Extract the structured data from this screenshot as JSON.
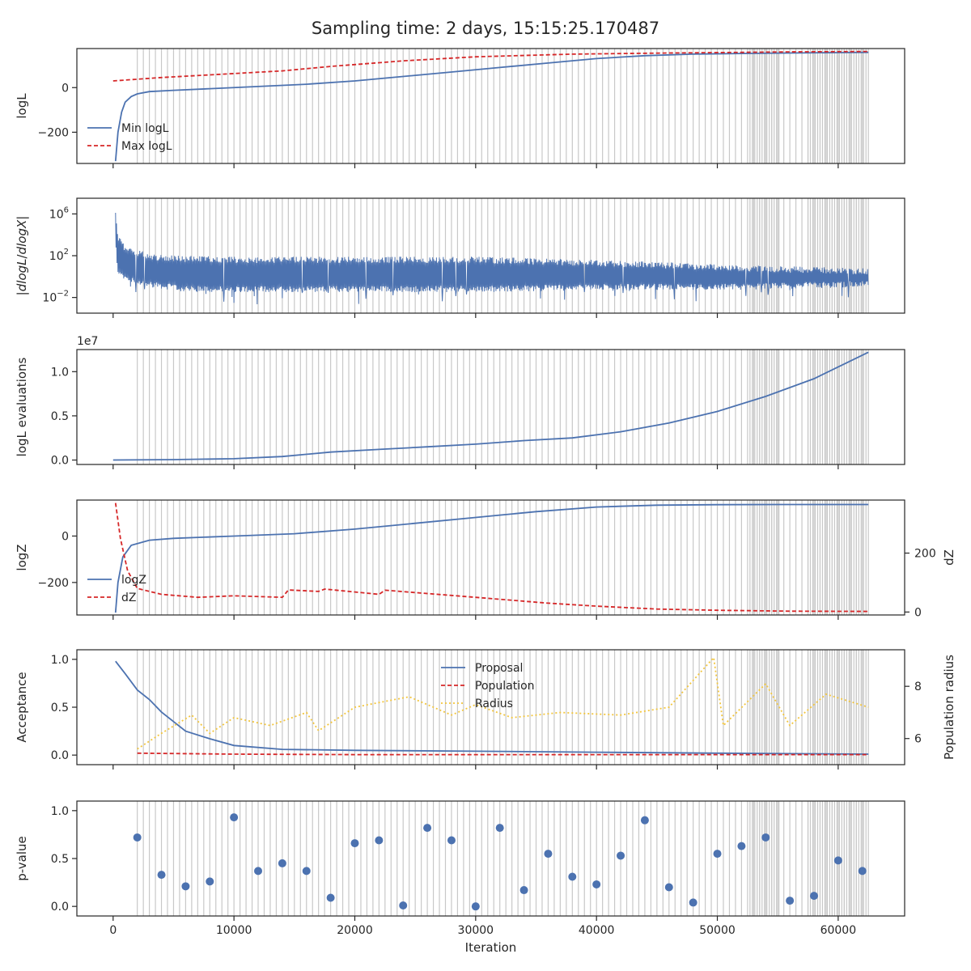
{
  "title": "Sampling time: 2 days, 15:15:25.170487",
  "colors": {
    "blue": "#4c72b0",
    "red": "#d62728",
    "yellow": "#f2c53d",
    "marker_lines": "#c8c8c8",
    "axes": "#262626"
  },
  "chart_data": [
    {
      "type": "line",
      "ylabel": "logL",
      "xlim": [
        -3000,
        65500
      ],
      "ylim": [
        -340,
        175
      ],
      "yticks": [
        0,
        -200
      ],
      "ytick_labels": [
        "0",
        "−200"
      ],
      "legend": {
        "placement": "lower-left",
        "entries": [
          "Min logL",
          "Max logL"
        ]
      },
      "series": [
        {
          "name": "Min logL",
          "style": "solid",
          "color": "blue",
          "x": [
            200,
            400,
            700,
            1000,
            1500,
            2000,
            3000,
            5000,
            8000,
            12000,
            16000,
            20000,
            24000,
            28000,
            32000,
            36000,
            40000,
            44000,
            48000,
            52000,
            56000,
            60000,
            62500
          ],
          "y": [
            -330,
            -200,
            -110,
            -65,
            -40,
            -28,
            -18,
            -12,
            -5,
            5,
            15,
            30,
            50,
            70,
            90,
            110,
            130,
            143,
            150,
            153,
            155,
            157,
            158
          ]
        },
        {
          "name": "Max logL",
          "style": "dashed",
          "color": "red",
          "x": [
            0,
            4000,
            9000,
            14000,
            18000,
            24000,
            30000,
            38000,
            46000,
            52000,
            56000,
            62500
          ],
          "y": [
            30,
            45,
            60,
            75,
            95,
            120,
            138,
            150,
            155,
            158,
            160,
            162
          ]
        }
      ]
    },
    {
      "type": "line",
      "ylabel": "|dlogL/dlogX|",
      "yscale": "log",
      "xlim": [
        -3000,
        65500
      ],
      "ylim": [
        -3.5,
        7.5
      ],
      "yticks": [
        6,
        2,
        -2
      ],
      "ytick_labels": [
        "10^6",
        "10^2",
        "10^-2"
      ],
      "series": [
        {
          "name": "",
          "style": "noisy",
          "color": "blue",
          "x": [
            200,
            400,
            1000,
            3000,
            6000,
            10000,
            20000,
            30000,
            40000,
            50000,
            55000,
            62500
          ],
          "y_upper": [
            6.5,
            4.0,
            3.0,
            2.2,
            2.0,
            1.9,
            1.9,
            1.9,
            1.6,
            1.2,
            1.0,
            0.8
          ],
          "y_lower": [
            3.0,
            0.0,
            -0.5,
            -1.0,
            -1.5,
            -1.5,
            -1.5,
            -1.5,
            -1.3,
            -1.3,
            -1.2,
            -1.0
          ],
          "y_min_spikes": [
            -2.5,
            -2.6,
            -3.0,
            -2.5
          ]
        }
      ]
    },
    {
      "type": "line",
      "ylabel": "logL evaluations",
      "offset_text": "1e7",
      "xlim": [
        -3000,
        65500
      ],
      "ylim": [
        -0.05,
        1.25
      ],
      "yticks": [
        0.0,
        0.5,
        1.0
      ],
      "ytick_labels": [
        "0.0",
        "0.5",
        "1.0"
      ],
      "series": [
        {
          "name": "",
          "style": "solid",
          "color": "blue",
          "x": [
            0,
            5000,
            10000,
            14000,
            18000,
            22000,
            26000,
            30000,
            34000,
            38000,
            42000,
            46000,
            50000,
            54000,
            58000,
            62500
          ],
          "y": [
            0.0,
            0.005,
            0.015,
            0.04,
            0.09,
            0.12,
            0.15,
            0.18,
            0.22,
            0.25,
            0.32,
            0.42,
            0.55,
            0.72,
            0.92,
            1.22
          ]
        }
      ]
    },
    {
      "type": "line",
      "ylabel": "logZ",
      "ylabel_right": "dZ",
      "xlim": [
        -3000,
        65500
      ],
      "ylim": [
        -340,
        155
      ],
      "yticks": [
        0,
        -200
      ],
      "ytick_labels": [
        "0",
        "−200"
      ],
      "ylim_right": [
        -10,
        380
      ],
      "yticks_right": [
        200,
        0
      ],
      "ytick_labels_right": [
        "200",
        "0"
      ],
      "legend": {
        "placement": "lower-left",
        "entries": [
          "logZ",
          "dZ"
        ]
      },
      "series": [
        {
          "name": "logZ",
          "style": "solid",
          "color": "blue",
          "axis": "left",
          "x": [
            200,
            400,
            800,
            1500,
            3000,
            5000,
            10000,
            15000,
            20000,
            25000,
            30000,
            35000,
            40000,
            45000,
            50000,
            55000,
            60000,
            62500
          ],
          "y": [
            -330,
            -200,
            -90,
            -40,
            -18,
            -10,
            0,
            10,
            30,
            55,
            80,
            105,
            125,
            133,
            135,
            136,
            136,
            136
          ]
        },
        {
          "name": "dZ",
          "style": "dashed",
          "color": "red",
          "axis": "right",
          "x": [
            200,
            600,
            1200,
            2000,
            4000,
            7000,
            10000,
            14000,
            14500,
            17000,
            17500,
            22000,
            22500,
            30000,
            36000,
            40000,
            45000,
            50000,
            56000,
            62500
          ],
          "y": [
            370,
            250,
            140,
            80,
            60,
            50,
            55,
            50,
            75,
            70,
            78,
            60,
            74,
            50,
            30,
            20,
            10,
            6,
            3,
            2
          ]
        }
      ]
    },
    {
      "type": "line",
      "ylabel": "Acceptance",
      "ylabel_right": "Population radius",
      "xlim": [
        -3000,
        65500
      ],
      "ylim": [
        -0.1,
        1.1
      ],
      "yticks": [
        1.0,
        0.5,
        0.0
      ],
      "ytick_labels": [
        "1.0",
        "0.5",
        "0.0"
      ],
      "ylim_right": [
        5.0,
        9.4
      ],
      "yticks_right": [
        8,
        6
      ],
      "ytick_labels_right": [
        "8",
        "6"
      ],
      "legend": {
        "placement": "upper-center",
        "entries": [
          "Proposal",
          "Population",
          "Radius"
        ]
      },
      "series": [
        {
          "name": "Proposal",
          "style": "solid",
          "color": "blue",
          "axis": "left",
          "x": [
            200,
            1000,
            2000,
            3000,
            4000,
            5000,
            6000,
            8000,
            10000,
            14000,
            20000,
            30000,
            40000,
            50000,
            62500
          ],
          "y": [
            0.98,
            0.85,
            0.68,
            0.58,
            0.45,
            0.35,
            0.25,
            0.17,
            0.1,
            0.06,
            0.05,
            0.04,
            0.03,
            0.02,
            0.01
          ]
        },
        {
          "name": "Population",
          "style": "dashed",
          "color": "red",
          "axis": "left",
          "x": [
            2000,
            10000,
            20000,
            40000,
            62500
          ],
          "y": [
            0.02,
            0.01,
            0.005,
            0.005,
            0.005
          ]
        },
        {
          "name": "Radius",
          "style": "dotted",
          "color": "yellow",
          "axis": "right",
          "x": [
            2000,
            4000,
            6500,
            8000,
            10000,
            13000,
            16000,
            17000,
            20000,
            24500,
            28000,
            30000,
            33000,
            37000,
            42000,
            46000,
            49700,
            50500,
            54000,
            56000,
            59000,
            62500
          ],
          "y": [
            5.6,
            6.2,
            6.9,
            6.2,
            6.8,
            6.5,
            7.0,
            6.3,
            7.2,
            7.6,
            6.9,
            7.3,
            6.8,
            7.0,
            6.9,
            7.2,
            9.1,
            6.5,
            8.1,
            6.5,
            7.7,
            7.2
          ]
        }
      ]
    },
    {
      "type": "scatter",
      "ylabel": "p-value",
      "xlabel": "Iteration",
      "xlim": [
        -3000,
        65500
      ],
      "ylim": [
        -0.1,
        1.1
      ],
      "yticks": [
        1.0,
        0.5,
        0.0
      ],
      "ytick_labels": [
        "1.0",
        "0.5",
        "0.0"
      ],
      "xticks": [
        0,
        10000,
        20000,
        30000,
        40000,
        50000,
        60000
      ],
      "xtick_labels": [
        "0",
        "10000",
        "20000",
        "30000",
        "40000",
        "50000",
        "60000"
      ],
      "series": [
        {
          "name": "",
          "color": "blue",
          "x": [
            2000,
            4000,
            6000,
            8000,
            10000,
            12000,
            14000,
            16000,
            18000,
            20000,
            22000,
            24000,
            26000,
            28000,
            30000,
            32000,
            34000,
            36000,
            38000,
            40000,
            42000,
            44000,
            46000,
            48000,
            50000,
            52000,
            54000,
            56000,
            58000,
            60000,
            62000
          ],
          "y": [
            0.72,
            0.33,
            0.21,
            0.26,
            0.93,
            0.37,
            0.45,
            0.37,
            0.09,
            0.66,
            0.69,
            0.01,
            0.82,
            0.69,
            0.0,
            0.82,
            0.17,
            0.55,
            0.31,
            0.23,
            0.53,
            0.9,
            0.2,
            0.04,
            0.55,
            0.63,
            0.72,
            0.06,
            0.11,
            0.48,
            0.37
          ]
        }
      ]
    }
  ],
  "marker_lines": {
    "x_start": 2000,
    "x_end": 62500,
    "dense_ranges": [
      [
        52700,
        55200
      ],
      [
        57500,
        62300
      ]
    ],
    "dense_step": 200,
    "sparse_step": 500
  }
}
